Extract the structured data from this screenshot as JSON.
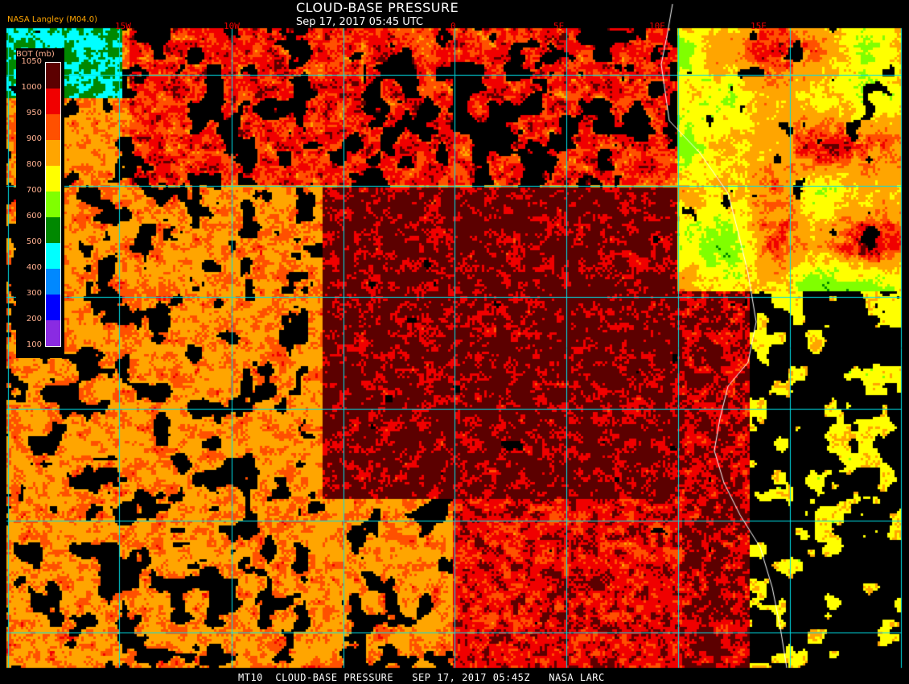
{
  "header": {
    "title": "CLOUD-BASE PRESSURE",
    "subtitle": "Sep 17, 2017 05:45 UTC",
    "credit": "NASA Langley (M04.0)"
  },
  "longitude_labels": [
    "15W",
    "10W",
    "0",
    "5E",
    "10E",
    "15E"
  ],
  "legend": {
    "title": "BOT (mb)",
    "ticks": [
      "1050",
      "1000",
      "950",
      "900",
      "800",
      "700",
      "600",
      "500",
      "400",
      "300",
      "200",
      "100"
    ],
    "colors": [
      "#5c0000",
      "#f00000",
      "#ff5000",
      "#ffa500",
      "#ffff00",
      "#80ff00",
      "#008800",
      "#00ffff",
      "#0088ff",
      "#0000ff",
      "#8a2be2"
    ]
  },
  "footer": "MT10  CLOUD-BASE PRESSURE   SEP 17, 2017 05:45Z   NASA LARC",
  "colors": {
    "grid": "#00e0e8",
    "coastline": "#ffffff",
    "background": "#000000"
  }
}
